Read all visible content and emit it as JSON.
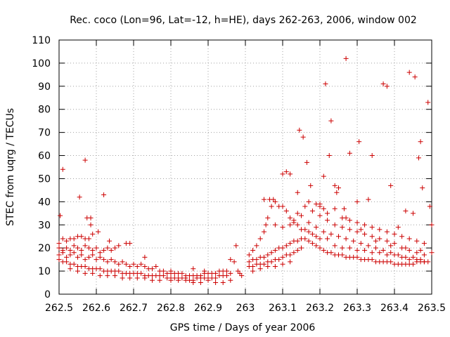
{
  "chart_data": {
    "type": "scatter",
    "title": "Rec. coco (Lon=96, Lat=-12, h=HE), days 262-263, 2006, window 002",
    "xlabel": "GPS time / Days of year 2006",
    "ylabel": "STEC from uqrg / TECUs",
    "xlim": [
      262.5,
      263.5
    ],
    "ylim": [
      0,
      110
    ],
    "xticks": [
      262.5,
      262.6,
      262.7,
      262.8,
      262.9,
      263,
      263.1,
      263.2,
      263.3,
      263.4,
      263.5
    ],
    "xtick_labels": [
      "262.5",
      "262.6",
      "262.7",
      "262.8",
      "262.9",
      "263",
      "263.1",
      "263.2",
      "263.3",
      "263.4",
      "263.5"
    ],
    "yticks": [
      0,
      10,
      20,
      30,
      40,
      50,
      60,
      70,
      80,
      90,
      100,
      110
    ],
    "ytick_labels": [
      "0",
      "10",
      "20",
      "30",
      "40",
      "50",
      "60",
      "70",
      "80",
      "90",
      "100",
      "110"
    ],
    "grid": true,
    "marker": "+",
    "color": "#cc0000",
    "points": [
      [
        262.503,
        34
      ],
      [
        262.51,
        54
      ],
      [
        262.555,
        42
      ],
      [
        262.57,
        58
      ],
      [
        262.575,
        33
      ],
      [
        262.585,
        33
      ],
      [
        262.585,
        30
      ],
      [
        262.605,
        27
      ],
      [
        262.62,
        43
      ],
      [
        262.635,
        23
      ],
      [
        262.68,
        22
      ],
      [
        262.69,
        22
      ],
      [
        262.73,
        16
      ],
      [
        262.8,
        10
      ],
      [
        262.86,
        11
      ],
      [
        262.89,
        10
      ],
      [
        262.5,
        22
      ],
      [
        262.51,
        24
      ],
      [
        262.52,
        23
      ],
      [
        262.53,
        24
      ],
      [
        262.54,
        24
      ],
      [
        262.55,
        25
      ],
      [
        262.56,
        25
      ],
      [
        262.57,
        24
      ],
      [
        262.58,
        24
      ],
      [
        262.59,
        26
      ],
      [
        262.5,
        20
      ],
      [
        262.51,
        19
      ],
      [
        262.52,
        20
      ],
      [
        262.53,
        19
      ],
      [
        262.54,
        21
      ],
      [
        262.55,
        20
      ],
      [
        262.56,
        19
      ],
      [
        262.57,
        21
      ],
      [
        262.58,
        20
      ],
      [
        262.59,
        19
      ],
      [
        262.6,
        20
      ],
      [
        262.61,
        18
      ],
      [
        262.62,
        19
      ],
      [
        262.63,
        20
      ],
      [
        262.64,
        19
      ],
      [
        262.65,
        20
      ],
      [
        262.66,
        21
      ],
      [
        262.5,
        17
      ],
      [
        262.51,
        18
      ],
      [
        262.52,
        16
      ],
      [
        262.53,
        17
      ],
      [
        262.54,
        18
      ],
      [
        262.55,
        16
      ],
      [
        262.56,
        17
      ],
      [
        262.57,
        15
      ],
      [
        262.58,
        16
      ],
      [
        262.59,
        17
      ],
      [
        262.6,
        15
      ],
      [
        262.61,
        16
      ],
      [
        262.62,
        15
      ],
      [
        262.63,
        14
      ],
      [
        262.64,
        15
      ],
      [
        262.65,
        14
      ],
      [
        262.66,
        13
      ],
      [
        262.67,
        14
      ],
      [
        262.68,
        13
      ],
      [
        262.69,
        12
      ],
      [
        262.7,
        13
      ],
      [
        262.71,
        12
      ],
      [
        262.72,
        13
      ],
      [
        262.73,
        12
      ],
      [
        262.74,
        11
      ],
      [
        262.75,
        11
      ],
      [
        262.76,
        12
      ],
      [
        262.77,
        10
      ],
      [
        262.5,
        15
      ],
      [
        262.51,
        14
      ],
      [
        262.52,
        14
      ],
      [
        262.53,
        13
      ],
      [
        262.54,
        13
      ],
      [
        262.55,
        12
      ],
      [
        262.56,
        12
      ],
      [
        262.57,
        12
      ],
      [
        262.58,
        11
      ],
      [
        262.59,
        11
      ],
      [
        262.6,
        11
      ],
      [
        262.61,
        11
      ],
      [
        262.62,
        10
      ],
      [
        262.63,
        10
      ],
      [
        262.64,
        10
      ],
      [
        262.65,
        10
      ],
      [
        262.66,
        10
      ],
      [
        262.67,
        9
      ],
      [
        262.68,
        9
      ],
      [
        262.69,
        9
      ],
      [
        262.7,
        9
      ],
      [
        262.71,
        9
      ],
      [
        262.72,
        9
      ],
      [
        262.73,
        8
      ],
      [
        262.74,
        8
      ],
      [
        262.75,
        8
      ],
      [
        262.76,
        8
      ],
      [
        262.77,
        8
      ],
      [
        262.78,
        8
      ],
      [
        262.79,
        7
      ],
      [
        262.53,
        11
      ],
      [
        262.55,
        10
      ],
      [
        262.57,
        9
      ],
      [
        262.59,
        9
      ],
      [
        262.61,
        8
      ],
      [
        262.63,
        8
      ],
      [
        262.65,
        8
      ],
      [
        262.67,
        7
      ],
      [
        262.69,
        7
      ],
      [
        262.71,
        7
      ],
      [
        262.73,
        7
      ],
      [
        262.75,
        6
      ],
      [
        262.77,
        6
      ],
      [
        262.78,
        10
      ],
      [
        262.79,
        9
      ],
      [
        262.8,
        9
      ],
      [
        262.81,
        9
      ],
      [
        262.82,
        9
      ],
      [
        262.83,
        9
      ],
      [
        262.84,
        8
      ],
      [
        262.85,
        8
      ],
      [
        262.86,
        8
      ],
      [
        262.87,
        8
      ],
      [
        262.88,
        8
      ],
      [
        262.89,
        9
      ],
      [
        262.9,
        9
      ],
      [
        262.91,
        9
      ],
      [
        262.92,
        9
      ],
      [
        262.93,
        10
      ],
      [
        262.94,
        10
      ],
      [
        262.95,
        10
      ],
      [
        262.8,
        7
      ],
      [
        262.81,
        7
      ],
      [
        262.82,
        7
      ],
      [
        262.83,
        7
      ],
      [
        262.84,
        7
      ],
      [
        262.85,
        6
      ],
      [
        262.86,
        6
      ],
      [
        262.87,
        7
      ],
      [
        262.88,
        7
      ],
      [
        262.89,
        7
      ],
      [
        262.9,
        7
      ],
      [
        262.91,
        7
      ],
      [
        262.92,
        7
      ],
      [
        262.93,
        8
      ],
      [
        262.94,
        8
      ],
      [
        262.95,
        8
      ],
      [
        262.96,
        9
      ],
      [
        262.8,
        6
      ],
      [
        262.82,
        6
      ],
      [
        262.84,
        6
      ],
      [
        262.86,
        5
      ],
      [
        262.88,
        5
      ],
      [
        262.9,
        6
      ],
      [
        262.92,
        5
      ],
      [
        262.94,
        5
      ],
      [
        262.96,
        6
      ],
      [
        262.96,
        15
      ],
      [
        262.97,
        14
      ],
      [
        262.975,
        21
      ],
      [
        262.98,
        10
      ],
      [
        262.985,
        9
      ],
      [
        262.99,
        8
      ],
      [
        263.01,
        17
      ],
      [
        263.02,
        19
      ],
      [
        263.03,
        21
      ],
      [
        263.04,
        24
      ],
      [
        263.05,
        27
      ],
      [
        263.055,
        30
      ],
      [
        263.06,
        33
      ],
      [
        263.07,
        38
      ],
      [
        263.08,
        40
      ],
      [
        263.09,
        38
      ],
      [
        263.1,
        38
      ],
      [
        263.11,
        36
      ],
      [
        263.12,
        33
      ],
      [
        263.13,
        31
      ],
      [
        263.14,
        30
      ],
      [
        263.15,
        28
      ],
      [
        263.16,
        28
      ],
      [
        263.17,
        27
      ],
      [
        263.18,
        26
      ],
      [
        263.19,
        25
      ],
      [
        263.2,
        24
      ],
      [
        263.05,
        41
      ],
      [
        263.065,
        41
      ],
      [
        263.075,
        41
      ],
      [
        263.1,
        52
      ],
      [
        263.11,
        53
      ],
      [
        263.12,
        52
      ],
      [
        263.14,
        44
      ],
      [
        263.145,
        71
      ],
      [
        263.155,
        68
      ],
      [
        263.165,
        57
      ],
      [
        263.175,
        47
      ],
      [
        263.2,
        39
      ],
      [
        263.21,
        51
      ],
      [
        263.215,
        91
      ],
      [
        263.225,
        60
      ],
      [
        263.23,
        75
      ],
      [
        263.24,
        47
      ],
      [
        263.245,
        44
      ],
      [
        263.25,
        46
      ],
      [
        263.265,
        37
      ],
      [
        263.27,
        102
      ],
      [
        263.28,
        61
      ],
      [
        263.3,
        40
      ],
      [
        263.305,
        66
      ],
      [
        263.33,
        41
      ],
      [
        263.34,
        60
      ],
      [
        263.37,
        91
      ],
      [
        263.38,
        90
      ],
      [
        263.39,
        47
      ],
      [
        263.41,
        29
      ],
      [
        263.43,
        36
      ],
      [
        263.44,
        96
      ],
      [
        263.45,
        35
      ],
      [
        263.455,
        94
      ],
      [
        263.465,
        59
      ],
      [
        263.47,
        66
      ],
      [
        263.475,
        46
      ],
      [
        263.49,
        83
      ],
      [
        263.495,
        38
      ],
      [
        263.5,
        30
      ],
      [
        263.01,
        14
      ],
      [
        263.02,
        15
      ],
      [
        263.03,
        15
      ],
      [
        263.04,
        16
      ],
      [
        263.05,
        16
      ],
      [
        263.06,
        17
      ],
      [
        263.07,
        18
      ],
      [
        263.08,
        19
      ],
      [
        263.09,
        20
      ],
      [
        263.1,
        20
      ],
      [
        263.11,
        21
      ],
      [
        263.12,
        22
      ],
      [
        263.13,
        23
      ],
      [
        263.14,
        23
      ],
      [
        263.15,
        24
      ],
      [
        263.16,
        24
      ],
      [
        263.17,
        23
      ],
      [
        263.18,
        22
      ],
      [
        263.19,
        21
      ],
      [
        263.2,
        20
      ],
      [
        263.21,
        19
      ],
      [
        263.22,
        18
      ],
      [
        263.23,
        18
      ],
      [
        263.24,
        17
      ],
      [
        263.25,
        17
      ],
      [
        263.26,
        17
      ],
      [
        263.27,
        16
      ],
      [
        263.28,
        16
      ],
      [
        263.29,
        16
      ],
      [
        263.3,
        16
      ],
      [
        263.31,
        15
      ],
      [
        263.32,
        15
      ],
      [
        263.33,
        15
      ],
      [
        263.34,
        15
      ],
      [
        263.35,
        14
      ],
      [
        263.36,
        14
      ],
      [
        263.37,
        14
      ],
      [
        263.38,
        14
      ],
      [
        263.39,
        14
      ],
      [
        263.4,
        13
      ],
      [
        263.41,
        13
      ],
      [
        263.42,
        13
      ],
      [
        263.43,
        13
      ],
      [
        263.44,
        13
      ],
      [
        263.45,
        13
      ],
      [
        263.46,
        14
      ],
      [
        263.47,
        14
      ],
      [
        263.48,
        14
      ],
      [
        263.49,
        14
      ],
      [
        263.01,
        12
      ],
      [
        263.02,
        12
      ],
      [
        263.03,
        13
      ],
      [
        263.04,
        13
      ],
      [
        263.05,
        13
      ],
      [
        263.06,
        14
      ],
      [
        263.07,
        14
      ],
      [
        263.08,
        15
      ],
      [
        263.09,
        15
      ],
      [
        263.1,
        16
      ],
      [
        263.11,
        17
      ],
      [
        263.12,
        17
      ],
      [
        263.13,
        18
      ],
      [
        263.14,
        19
      ],
      [
        263.15,
        20
      ],
      [
        263.02,
        10
      ],
      [
        263.04,
        11
      ],
      [
        263.06,
        12
      ],
      [
        263.08,
        12
      ],
      [
        263.1,
        13
      ],
      [
        263.12,
        14
      ],
      [
        263.08,
        30
      ],
      [
        263.1,
        29
      ],
      [
        263.12,
        30
      ],
      [
        263.13,
        32
      ],
      [
        263.14,
        35
      ],
      [
        263.16,
        38
      ],
      [
        263.18,
        36
      ],
      [
        263.2,
        34
      ],
      [
        263.22,
        32
      ],
      [
        263.24,
        30
      ],
      [
        263.26,
        29
      ],
      [
        263.28,
        28
      ],
      [
        263.3,
        27
      ],
      [
        263.32,
        26
      ],
      [
        263.34,
        25
      ],
      [
        263.36,
        24
      ],
      [
        263.38,
        23
      ],
      [
        263.4,
        22
      ],
      [
        263.42,
        20
      ],
      [
        263.44,
        19
      ],
      [
        263.46,
        18
      ],
      [
        263.48,
        17
      ],
      [
        263.15,
        34
      ],
      [
        263.17,
        31
      ],
      [
        263.19,
        29
      ],
      [
        263.21,
        27
      ],
      [
        263.23,
        26
      ],
      [
        263.25,
        25
      ],
      [
        263.27,
        24
      ],
      [
        263.29,
        23
      ],
      [
        263.31,
        22
      ],
      [
        263.33,
        21
      ],
      [
        263.35,
        20
      ],
      [
        263.37,
        19
      ],
      [
        263.39,
        18
      ],
      [
        263.41,
        17
      ],
      [
        263.43,
        16
      ],
      [
        263.45,
        16
      ],
      [
        263.47,
        15
      ],
      [
        263.22,
        24
      ],
      [
        263.24,
        21
      ],
      [
        263.26,
        20
      ],
      [
        263.28,
        20
      ],
      [
        263.3,
        19
      ],
      [
        263.32,
        19
      ],
      [
        263.34,
        18
      ],
      [
        263.36,
        18
      ],
      [
        263.38,
        17
      ],
      [
        263.4,
        17
      ],
      [
        263.42,
        16
      ],
      [
        263.44,
        15
      ],
      [
        263.46,
        15
      ],
      [
        263.48,
        14
      ],
      [
        263.2,
        38
      ],
      [
        263.22,
        35
      ],
      [
        263.24,
        37
      ],
      [
        263.26,
        33
      ],
      [
        263.28,
        32
      ],
      [
        263.3,
        31
      ],
      [
        263.32,
        30
      ],
      [
        263.34,
        29
      ],
      [
        263.36,
        28
      ],
      [
        263.38,
        27
      ],
      [
        263.4,
        26
      ],
      [
        263.42,
        25
      ],
      [
        263.44,
        24
      ],
      [
        263.46,
        23
      ],
      [
        263.48,
        22
      ],
      [
        263.17,
        40
      ],
      [
        263.19,
        39
      ],
      [
        263.21,
        37
      ],
      [
        263.27,
        33
      ],
      [
        263.31,
        28
      ],
      [
        263.35,
        23
      ],
      [
        263.39,
        21
      ],
      [
        263.43,
        20
      ],
      [
        263.47,
        19
      ],
      [
        263.5,
        18
      ]
    ]
  }
}
